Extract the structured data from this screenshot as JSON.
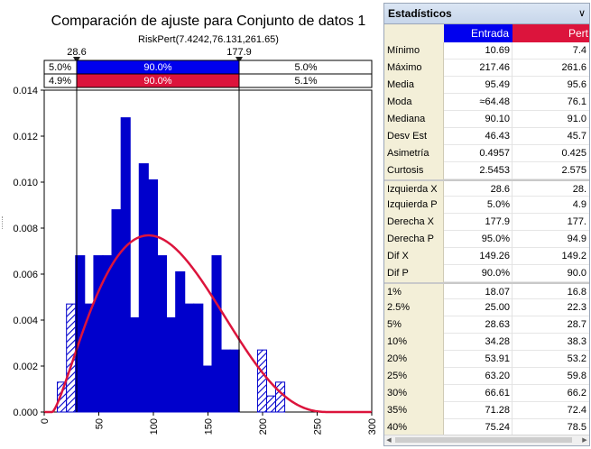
{
  "chart": {
    "title": "Comparación de ajuste para Conjunto de datos 1",
    "subtitle": "RiskPert(7.4242,76.131,261.65)",
    "left_marker": "28.6",
    "right_marker": "177.9",
    "bar1": {
      "left": "5.0%",
      "mid": "90.0%",
      "right": "5.0%",
      "color": "#0000ee"
    },
    "bar2": {
      "left": "4.9%",
      "mid": "90.0%",
      "right": "5.1%",
      "color": "#dc143c"
    },
    "curve_color": "#dc143c",
    "hist_color": "#0000cc"
  },
  "chart_data": {
    "type": "histogram",
    "xlim": [
      0,
      300
    ],
    "ylim": [
      0,
      0.014
    ],
    "xticks": [
      "0",
      "50",
      "100",
      "150",
      "200",
      "250",
      "300"
    ],
    "yticks": [
      "0.000",
      "0.002",
      "0.004",
      "0.006",
      "0.008",
      "0.010",
      "0.012",
      "0.014"
    ],
    "bin_width": 8.33,
    "bins": [
      {
        "x": 12.0,
        "y": 0.0013
      },
      {
        "x": 20.4,
        "y": 0.0047
      },
      {
        "x": 28.7,
        "y": 0.0068
      },
      {
        "x": 37.0,
        "y": 0.0047
      },
      {
        "x": 45.4,
        "y": 0.0068
      },
      {
        "x": 53.7,
        "y": 0.0068
      },
      {
        "x": 62.0,
        "y": 0.0088
      },
      {
        "x": 70.4,
        "y": 0.0128
      },
      {
        "x": 78.7,
        "y": 0.0041
      },
      {
        "x": 87.0,
        "y": 0.0108
      },
      {
        "x": 95.4,
        "y": 0.0101
      },
      {
        "x": 103.7,
        "y": 0.0068
      },
      {
        "x": 112.0,
        "y": 0.0041
      },
      {
        "x": 120.4,
        "y": 0.0061
      },
      {
        "x": 128.7,
        "y": 0.0047
      },
      {
        "x": 137.0,
        "y": 0.0047
      },
      {
        "x": 145.4,
        "y": 0.002
      },
      {
        "x": 153.7,
        "y": 0.0068
      },
      {
        "x": 162.0,
        "y": 0.0027
      },
      {
        "x": 170.4,
        "y": 0.0027
      },
      {
        "x": 178.7,
        "y": 0.0
      },
      {
        "x": 187.0,
        "y": 0.0
      },
      {
        "x": 195.4,
        "y": 0.0027
      },
      {
        "x": 203.7,
        "y": 0.0007
      },
      {
        "x": 212.0,
        "y": 0.0013
      }
    ],
    "curve": {
      "type": "pert",
      "min": 7.4242,
      "mode": 76.131,
      "max": 261.65
    },
    "shaded_below": 28.6,
    "shaded_above": 177.9
  },
  "stats": {
    "title": "Estadísticos",
    "col_entrada": "Entrada",
    "col_pert": "Pert",
    "col_entrada_color": "#0000ee",
    "col_pert_color": "#dc143c",
    "rows": [
      {
        "label": "Mínimo",
        "a": "10.69",
        "b": "7.4"
      },
      {
        "label": "Máximo",
        "a": "217.46",
        "b": "261.6"
      },
      {
        "label": "Media",
        "a": "95.49",
        "b": "95.6"
      },
      {
        "label": "Moda",
        "a": "≈64.48",
        "b": "76.1"
      },
      {
        "label": "Mediana",
        "a": "90.10",
        "b": "91.0"
      },
      {
        "label": "Desv Est",
        "a": "46.43",
        "b": "45.7"
      },
      {
        "label": "Asimetría",
        "a": "0.4957",
        "b": "0.425"
      },
      {
        "label": "Curtosis",
        "a": "2.5453",
        "b": "2.575"
      },
      {
        "label": "Izquierda X",
        "a": "28.6",
        "b": "28."
      },
      {
        "label": "Izquierda P",
        "a": "5.0%",
        "b": "4.9"
      },
      {
        "label": "Derecha X",
        "a": "177.9",
        "b": "177."
      },
      {
        "label": "Derecha P",
        "a": "95.0%",
        "b": "94.9"
      },
      {
        "label": "Dif X",
        "a": "149.26",
        "b": "149.2"
      },
      {
        "label": "Dif P",
        "a": "90.0%",
        "b": "90.0"
      },
      {
        "label": "1%",
        "a": "18.07",
        "b": "16.8"
      },
      {
        "label": "2.5%",
        "a": "25.00",
        "b": "22.3"
      },
      {
        "label": "5%",
        "a": "28.63",
        "b": "28.7"
      },
      {
        "label": "10%",
        "a": "34.28",
        "b": "38.3"
      },
      {
        "label": "20%",
        "a": "53.91",
        "b": "53.2"
      },
      {
        "label": "25%",
        "a": "63.20",
        "b": "59.8"
      },
      {
        "label": "30%",
        "a": "66.61",
        "b": "66.2"
      },
      {
        "label": "35%",
        "a": "71.28",
        "b": "72.4"
      },
      {
        "label": "40%",
        "a": "75.24",
        "b": "78.5"
      }
    ]
  }
}
